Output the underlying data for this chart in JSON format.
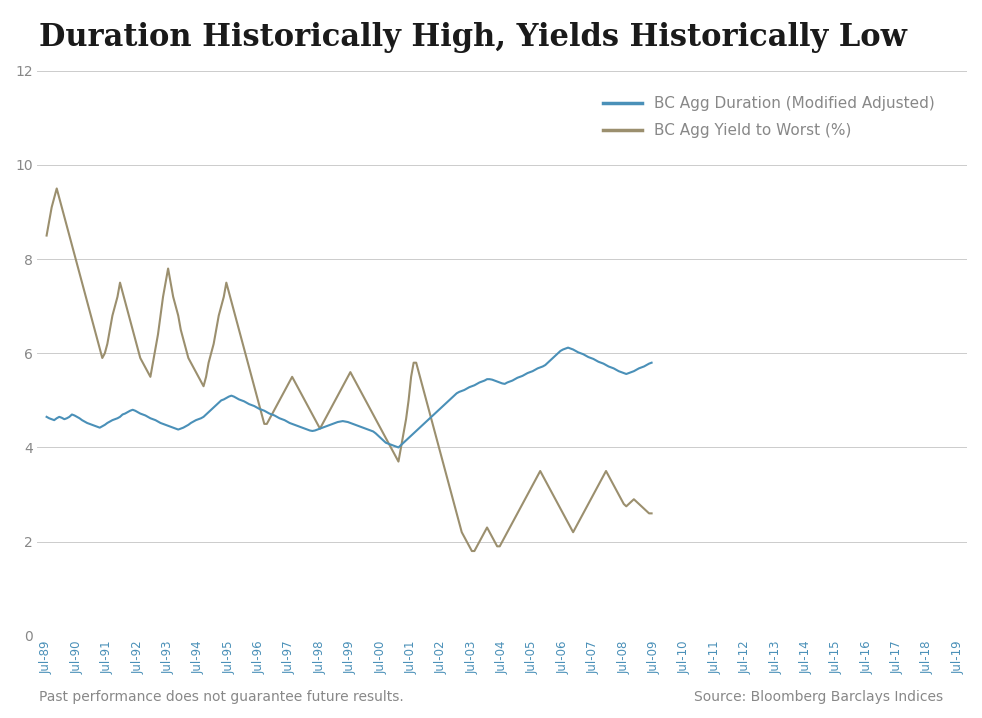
{
  "title": "Duration Historically High, Yields Historically Low",
  "title_fontsize": 22,
  "title_color": "#1a1a1a",
  "footer_left": "Past performance does not guarantee future results.",
  "footer_right": "Source: Bloomberg Barclays Indices",
  "footer_fontsize": 10,
  "duration_color": "#4a90b8",
  "yield_color": "#9b8f6e",
  "duration_label": "BC Agg Duration (Modified Adjusted)",
  "yield_label": "BC Agg Yield to Worst (%)",
  "legend_fontsize": 11,
  "axis_label_color": "#4a90b8",
  "tick_color": "#888888",
  "ylim": [
    0,
    12
  ],
  "yticks": [
    0,
    2,
    4,
    6,
    8,
    10,
    12
  ],
  "background_color": "#ffffff",
  "grid_color": "#cccccc",
  "line_width": 1.5,
  "x_start_year": 1989,
  "x_end_year": 2019,
  "duration_data": [
    4.65,
    4.62,
    4.6,
    4.58,
    4.62,
    4.65,
    4.63,
    4.6,
    4.62,
    4.65,
    4.7,
    4.68,
    4.65,
    4.62,
    4.58,
    4.55,
    4.52,
    4.5,
    4.48,
    4.46,
    4.44,
    4.42,
    4.45,
    4.48,
    4.52,
    4.55,
    4.58,
    4.6,
    4.62,
    4.65,
    4.7,
    4.72,
    4.75,
    4.78,
    4.8,
    4.78,
    4.75,
    4.72,
    4.7,
    4.68,
    4.65,
    4.62,
    4.6,
    4.58,
    4.55,
    4.52,
    4.5,
    4.48,
    4.46,
    4.44,
    4.42,
    4.4,
    4.38,
    4.4,
    4.42,
    4.45,
    4.48,
    4.52,
    4.55,
    4.58,
    4.6,
    4.62,
    4.65,
    4.7,
    4.75,
    4.8,
    4.85,
    4.9,
    4.95,
    5.0,
    5.02,
    5.05,
    5.08,
    5.1,
    5.08,
    5.05,
    5.02,
    5.0,
    4.98,
    4.95,
    4.92,
    4.9,
    4.88,
    4.85,
    4.82,
    4.8,
    4.78,
    4.75,
    4.72,
    4.7,
    4.68,
    4.65,
    4.62,
    4.6,
    4.58,
    4.55,
    4.52,
    4.5,
    4.48,
    4.46,
    4.44,
    4.42,
    4.4,
    4.38,
    4.36,
    4.35,
    4.36,
    4.38,
    4.4,
    4.42,
    4.44,
    4.46,
    4.48,
    4.5,
    4.52,
    4.54,
    4.55,
    4.56,
    4.55,
    4.54,
    4.52,
    4.5,
    4.48,
    4.46,
    4.44,
    4.42,
    4.4,
    4.38,
    4.36,
    4.34,
    4.3,
    4.25,
    4.2,
    4.15,
    4.1,
    4.08,
    4.06,
    4.04,
    4.02,
    4.0,
    4.05,
    4.1,
    4.15,
    4.2,
    4.25,
    4.3,
    4.35,
    4.4,
    4.45,
    4.5,
    4.55,
    4.6,
    4.65,
    4.7,
    4.75,
    4.8,
    4.85,
    4.9,
    4.95,
    5.0,
    5.05,
    5.1,
    5.15,
    5.18,
    5.2,
    5.22,
    5.25,
    5.28,
    5.3,
    5.32,
    5.35,
    5.38,
    5.4,
    5.42,
    5.45,
    5.45,
    5.44,
    5.42,
    5.4,
    5.38,
    5.36,
    5.35,
    5.38,
    5.4,
    5.42,
    5.45,
    5.48,
    5.5,
    5.52,
    5.55,
    5.58,
    5.6,
    5.62,
    5.65,
    5.68,
    5.7,
    5.72,
    5.75,
    5.8,
    5.85,
    5.9,
    5.95,
    6.0,
    6.05,
    6.08,
    6.1,
    6.12,
    6.1,
    6.08,
    6.05,
    6.02,
    6.0,
    5.98,
    5.95,
    5.92,
    5.9,
    5.88,
    5.85,
    5.82,
    5.8,
    5.78,
    5.75,
    5.72,
    5.7,
    5.68,
    5.65,
    5.62,
    5.6,
    5.58,
    5.56,
    5.58,
    5.6,
    5.62,
    5.65,
    5.68,
    5.7,
    5.72,
    5.75,
    5.78,
    5.8
  ],
  "yield_data": [
    8.5,
    8.8,
    9.1,
    9.3,
    9.5,
    9.3,
    9.1,
    8.9,
    8.7,
    8.5,
    8.3,
    8.1,
    7.9,
    7.7,
    7.5,
    7.3,
    7.1,
    6.9,
    6.7,
    6.5,
    6.3,
    6.1,
    5.9,
    6.0,
    6.2,
    6.5,
    6.8,
    7.0,
    7.2,
    7.5,
    7.3,
    7.1,
    6.9,
    6.7,
    6.5,
    6.3,
    6.1,
    5.9,
    5.8,
    5.7,
    5.6,
    5.5,
    5.8,
    6.1,
    6.4,
    6.8,
    7.2,
    7.5,
    7.8,
    7.5,
    7.2,
    7.0,
    6.8,
    6.5,
    6.3,
    6.1,
    5.9,
    5.8,
    5.7,
    5.6,
    5.5,
    5.4,
    5.3,
    5.5,
    5.8,
    6.0,
    6.2,
    6.5,
    6.8,
    7.0,
    7.2,
    7.5,
    7.3,
    7.1,
    6.9,
    6.7,
    6.5,
    6.3,
    6.1,
    5.9,
    5.7,
    5.5,
    5.3,
    5.1,
    4.9,
    4.7,
    4.5,
    4.5,
    4.6,
    4.7,
    4.8,
    4.9,
    5.0,
    5.1,
    5.2,
    5.3,
    5.4,
    5.5,
    5.4,
    5.3,
    5.2,
    5.1,
    5.0,
    4.9,
    4.8,
    4.7,
    4.6,
    4.5,
    4.4,
    4.5,
    4.6,
    4.7,
    4.8,
    4.9,
    5.0,
    5.1,
    5.2,
    5.3,
    5.4,
    5.5,
    5.6,
    5.5,
    5.4,
    5.3,
    5.2,
    5.1,
    5.0,
    4.9,
    4.8,
    4.7,
    4.6,
    4.5,
    4.4,
    4.3,
    4.2,
    4.1,
    4.0,
    3.9,
    3.8,
    3.7,
    4.0,
    4.3,
    4.6,
    5.0,
    5.5,
    5.8,
    5.8,
    5.6,
    5.4,
    5.2,
    5.0,
    4.8,
    4.6,
    4.4,
    4.2,
    4.0,
    3.8,
    3.6,
    3.4,
    3.2,
    3.0,
    2.8,
    2.6,
    2.4,
    2.2,
    2.1,
    2.0,
    1.9,
    1.8,
    1.8,
    1.9,
    2.0,
    2.1,
    2.2,
    2.3,
    2.2,
    2.1,
    2.0,
    1.9,
    1.9,
    2.0,
    2.1,
    2.2,
    2.3,
    2.4,
    2.5,
    2.6,
    2.7,
    2.8,
    2.9,
    3.0,
    3.1,
    3.2,
    3.3,
    3.4,
    3.5,
    3.4,
    3.3,
    3.2,
    3.1,
    3.0,
    2.9,
    2.8,
    2.7,
    2.6,
    2.5,
    2.4,
    2.3,
    2.2,
    2.3,
    2.4,
    2.5,
    2.6,
    2.7,
    2.8,
    2.9,
    3.0,
    3.1,
    3.2,
    3.3,
    3.4,
    3.5,
    3.4,
    3.3,
    3.2,
    3.1,
    3.0,
    2.9,
    2.8,
    2.75,
    2.8,
    2.85,
    2.9,
    2.85,
    2.8,
    2.75,
    2.7,
    2.65,
    2.6,
    2.6
  ]
}
